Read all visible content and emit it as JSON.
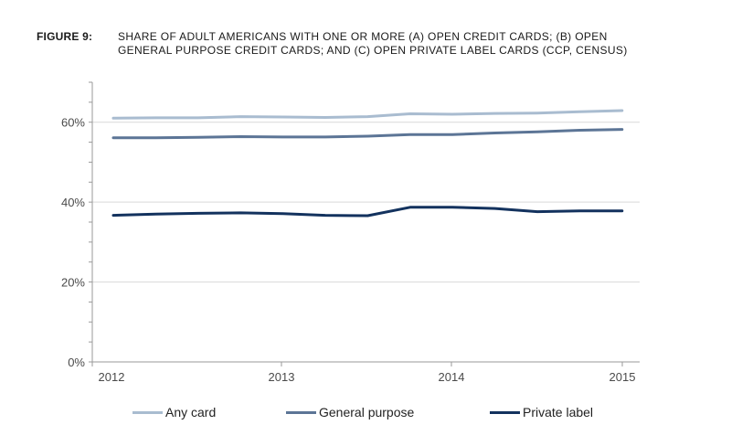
{
  "figure": {
    "label": "FIGURE 9:",
    "title_line1": "SHARE OF ADULT AMERICANS WITH ONE OR MORE (A) OPEN CREDIT CARDS; (B) OPEN",
    "title_line2": "GENERAL PURPOSE CREDIT CARDS; AND (C) OPEN PRIVATE LABEL CARDS (CCP, CENSUS)"
  },
  "chart_data": {
    "type": "line",
    "title": "SHARE OF ADULT AMERICANS WITH ONE OR MORE (A) OPEN CREDIT CARDS; (B) OPEN GENERAL PURPOSE CREDIT CARDS; AND (C) OPEN PRIVATE LABEL CARDS (CCP, CENSUS)",
    "xlabel": "",
    "ylabel": "",
    "xlim": [
      2012.0,
      2015.25
    ],
    "ylim": [
      0,
      70
    ],
    "x_ticks": [
      "2012",
      "2013",
      "2014",
      "2015"
    ],
    "y_ticks": [
      "0%",
      "20%",
      "40%",
      "60%"
    ],
    "y_tick_values": [
      0,
      20,
      40,
      60
    ],
    "grid": "horizontal",
    "legend_position": "bottom",
    "x": [
      2012.0,
      2012.25,
      2012.5,
      2012.75,
      2013.0,
      2013.25,
      2013.5,
      2013.75,
      2014.0,
      2014.25,
      2014.5,
      2014.75,
      2015.0
    ],
    "series": [
      {
        "name": "Any card",
        "color": "#a9bcd0",
        "values": [
          61.0,
          61.1,
          61.1,
          61.4,
          61.3,
          61.2,
          61.4,
          62.1,
          62.0,
          62.2,
          62.3,
          62.6,
          62.9
        ]
      },
      {
        "name": "General purpose",
        "color": "#5c7596",
        "values": [
          56.1,
          56.1,
          56.2,
          56.4,
          56.3,
          56.3,
          56.5,
          56.9,
          56.9,
          57.3,
          57.6,
          58.0,
          58.2
        ]
      },
      {
        "name": "Private label",
        "color": "#13325e",
        "values": [
          36.7,
          37.0,
          37.2,
          37.3,
          37.1,
          36.7,
          36.6,
          38.7,
          38.7,
          38.4,
          37.6,
          37.8,
          37.8
        ]
      }
    ]
  }
}
